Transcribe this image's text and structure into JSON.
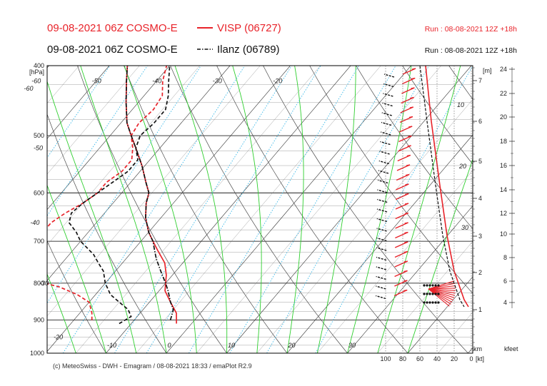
{
  "header": {
    "line1_left": "09-08-2021 06Z COSMO-E",
    "line1_station": "VISP (06727)",
    "line1_run": "Run : 08-08-2021 12Z +18h",
    "line2_left": "09-08-2021 06Z COSMO-E",
    "line2_station": "Ilanz (06789)",
    "line2_run": "Run : 08-08-2021 12Z +18h"
  },
  "footer": {
    "credit": "(c) MeteoSwiss - DWH - Emagram / 08-08-2021 18:33 / emaPlot R2.9"
  },
  "colors": {
    "visp": "#e8232a",
    "ilanz": "#111111",
    "dry_adiabat": "#4a4a4a",
    "moist_adiabat": "#2fcf2f",
    "mixing_ratio": "#38b8e8"
  },
  "chart_data": {
    "type": "line",
    "subtype": "emagram",
    "y_unit_label": "[hPa]",
    "pressure_ticks": [
      "400",
      "500",
      "600",
      "700",
      "800",
      "900",
      "1000"
    ],
    "temp_labels": [
      "-60",
      "-50",
      "-40",
      "-30",
      "-20",
      "-60",
      "-50",
      "-40",
      "-30",
      "-20",
      "-10",
      "0",
      "10",
      "20",
      "30"
    ],
    "height_km_label": "[m]",
    "height_km_ticks": [
      "7",
      "6",
      "5",
      "4",
      "3",
      "2",
      "1"
    ],
    "height_km_unit": "km",
    "height_kfeet_ticks": [
      "24",
      "22",
      "20",
      "18",
      "16",
      "14",
      "12",
      "10",
      "8",
      "6",
      "4"
    ],
    "height_kfeet_unit": "kfeet",
    "wind_axis_ticks": [
      "100",
      "80",
      "60",
      "40",
      "20",
      "0"
    ],
    "wind_axis_unit": "[kt]",
    "wind_speed_labels": [
      "10",
      "20",
      "30"
    ],
    "series": [
      {
        "name": "VISP (06727)",
        "color": "#e8232a",
        "temperature": [
          [
            910,
            -2.5
          ],
          [
            880,
            -4
          ],
          [
            850,
            -6.5
          ],
          [
            820,
            -9
          ],
          [
            800,
            -10
          ],
          [
            780,
            -11
          ],
          [
            750,
            -13
          ],
          [
            720,
            -16
          ],
          [
            700,
            -18
          ],
          [
            680,
            -20
          ],
          [
            650,
            -22.5
          ],
          [
            620,
            -24.5
          ],
          [
            600,
            -25.5
          ],
          [
            580,
            -27.5
          ],
          [
            550,
            -30.5
          ],
          [
            520,
            -34
          ],
          [
            500,
            -36.5
          ],
          [
            480,
            -39
          ],
          [
            450,
            -42
          ],
          [
            420,
            -45
          ],
          [
            400,
            -47
          ]
        ],
        "dewpoint": [
          [
            900,
            -17
          ],
          [
            880,
            -18
          ],
          [
            850,
            -20
          ],
          [
            830,
            -23
          ],
          [
            810,
            -27
          ],
          [
            800,
            -30
          ],
          [
            780,
            -33
          ],
          [
            760,
            -35
          ],
          [
            740,
            -36
          ],
          [
            720,
            -37
          ],
          [
            700,
            -37.5
          ],
          [
            680,
            -37.5
          ],
          [
            660,
            -37.5
          ],
          [
            640,
            -36.5
          ],
          [
            620,
            -35
          ],
          [
            600,
            -34
          ],
          [
            580,
            -34
          ],
          [
            560,
            -33
          ],
          [
            540,
            -33
          ],
          [
            520,
            -34.5
          ],
          [
            500,
            -36.5
          ],
          [
            480,
            -37
          ],
          [
            460,
            -36.5
          ],
          [
            440,
            -37
          ],
          [
            420,
            -39
          ],
          [
            400,
            -40.5
          ]
        ]
      },
      {
        "name": "Ilanz (06789)",
        "color": "#111111",
        "temperature": [
          [
            900,
            -4
          ],
          [
            870,
            -5
          ],
          [
            850,
            -6.5
          ],
          [
            820,
            -8.5
          ],
          [
            800,
            -10
          ],
          [
            770,
            -12.5
          ],
          [
            740,
            -15
          ],
          [
            720,
            -16.5
          ],
          [
            700,
            -18
          ],
          [
            680,
            -20
          ],
          [
            650,
            -22.5
          ],
          [
            620,
            -24.5
          ],
          [
            600,
            -25.5
          ],
          [
            580,
            -27.5
          ],
          [
            550,
            -30.5
          ],
          [
            520,
            -34
          ],
          [
            500,
            -36.5
          ],
          [
            480,
            -39
          ],
          [
            450,
            -42
          ],
          [
            420,
            -45
          ],
          [
            400,
            -47
          ]
        ],
        "dewpoint": [
          [
            910,
            -12
          ],
          [
            890,
            -11
          ],
          [
            870,
            -12.5
          ],
          [
            850,
            -15
          ],
          [
            830,
            -17.5
          ],
          [
            800,
            -20
          ],
          [
            770,
            -22
          ],
          [
            750,
            -24
          ],
          [
            730,
            -26
          ],
          [
            700,
            -30
          ],
          [
            680,
            -32
          ],
          [
            660,
            -34.5
          ],
          [
            640,
            -35.5
          ],
          [
            620,
            -35
          ],
          [
            600,
            -34
          ],
          [
            580,
            -33
          ],
          [
            560,
            -32
          ],
          [
            540,
            -32
          ],
          [
            520,
            -34
          ],
          [
            500,
            -35
          ],
          [
            480,
            -34.5
          ],
          [
            460,
            -34.5
          ],
          [
            440,
            -36
          ],
          [
            420,
            -38
          ],
          [
            400,
            -40
          ]
        ]
      }
    ]
  }
}
